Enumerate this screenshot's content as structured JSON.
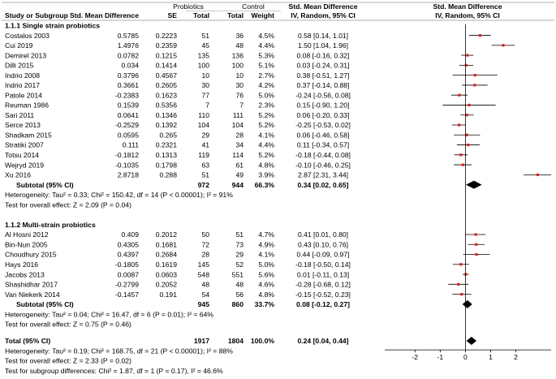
{
  "chart_data": {
    "type": "forest",
    "title": "",
    "headers": {
      "probiotics": "Probiotics",
      "control": "Control",
      "study": "Study or Subgroup",
      "smd": "Std. Mean Difference",
      "se": "SE",
      "total1": "Total",
      "total2": "Total",
      "weight": "Weight",
      "effect_title": "Std. Mean Difference",
      "effect_sub": "IV, Random, 95% CI",
      "plot_title": "Std. Mean Difference",
      "plot_sub": "IV, Random, 95% CI"
    },
    "x_axis": {
      "range": [
        -3.2,
        3.4
      ],
      "ticks": [
        -2,
        -1,
        0,
        1,
        2
      ],
      "tick_labels": [
        "-2",
        "-1",
        "0",
        "1",
        "2"
      ]
    },
    "groups": [
      {
        "label": "1.1.1 Single strain probiotics",
        "studies": [
          {
            "name": "Costalos 2003",
            "smd": "0.5785",
            "se": "0.2223",
            "n1": "51",
            "n2": "36",
            "weight": "4.5%",
            "ci_text": "0.58 [0.14, 1.01]",
            "est": 0.58,
            "lo": 0.14,
            "hi": 1.01
          },
          {
            "name": "Cui 2019",
            "smd": "1.4976",
            "se": "0.2359",
            "n1": "45",
            "n2": "48",
            "weight": "4.4%",
            "ci_text": "1.50 [1.04, 1.96]",
            "est": 1.5,
            "lo": 1.04,
            "hi": 1.96
          },
          {
            "name": "Demirel 2013",
            "smd": "0.0782",
            "se": "0.1215",
            "n1": "135",
            "n2": "136",
            "weight": "5.3%",
            "ci_text": "0.08 [-0.16, 0.32]",
            "est": 0.08,
            "lo": -0.16,
            "hi": 0.32
          },
          {
            "name": "Dilli 2015",
            "smd": "0.034",
            "se": "0.1414",
            "n1": "100",
            "n2": "100",
            "weight": "5.1%",
            "ci_text": "0.03 [-0.24, 0.31]",
            "est": 0.03,
            "lo": -0.24,
            "hi": 0.31
          },
          {
            "name": "Indrio 2008",
            "smd": "0.3796",
            "se": "0.4567",
            "n1": "10",
            "n2": "10",
            "weight": "2.7%",
            "ci_text": "0.38 [-0.51, 1.27]",
            "est": 0.38,
            "lo": -0.51,
            "hi": 1.27
          },
          {
            "name": "Indrio 2017",
            "smd": "0.3661",
            "se": "0.2605",
            "n1": "30",
            "n2": "30",
            "weight": "4.2%",
            "ci_text": "0.37 [-0.14, 0.88]",
            "est": 0.37,
            "lo": -0.14,
            "hi": 0.88
          },
          {
            "name": "Patole 2014",
            "smd": "-0.2383",
            "se": "0.1623",
            "n1": "77",
            "n2": "76",
            "weight": "5.0%",
            "ci_text": "-0.24 [-0.56, 0.08]",
            "est": -0.24,
            "lo": -0.56,
            "hi": 0.08
          },
          {
            "name": "Reuman 1986",
            "smd": "0.1539",
            "se": "0.5356",
            "n1": "7",
            "n2": "7",
            "weight": "2.3%",
            "ci_text": "0.15 [-0.90, 1.20]",
            "est": 0.15,
            "lo": -0.9,
            "hi": 1.2
          },
          {
            "name": "Sari 2011",
            "smd": "0.0641",
            "se": "0.1346",
            "n1": "110",
            "n2": "111",
            "weight": "5.2%",
            "ci_text": "0.06 [-0.20, 0.33]",
            "est": 0.06,
            "lo": -0.2,
            "hi": 0.33
          },
          {
            "name": "Serce 2013",
            "smd": "-0.2529",
            "se": "0.1392",
            "n1": "104",
            "n2": "104",
            "weight": "5.2%",
            "ci_text": "-0.25 [-0.53, 0.02]",
            "est": -0.25,
            "lo": -0.53,
            "hi": 0.02
          },
          {
            "name": "Shadkam 2015",
            "smd": "0.0595",
            "se": "0.265",
            "n1": "29",
            "n2": "28",
            "weight": "4.1%",
            "ci_text": "0.06 [-0.46, 0.58]",
            "est": 0.06,
            "lo": -0.46,
            "hi": 0.58
          },
          {
            "name": "Stratiki 2007",
            "smd": "0.111",
            "se": "0.2321",
            "n1": "41",
            "n2": "34",
            "weight": "4.4%",
            "ci_text": "0.11 [-0.34, 0.57]",
            "est": 0.11,
            "lo": -0.34,
            "hi": 0.57
          },
          {
            "name": "Totsu 2014",
            "smd": "-0.1812",
            "se": "0.1313",
            "n1": "119",
            "n2": "114",
            "weight": "5.2%",
            "ci_text": "-0.18 [-0.44, 0.08]",
            "est": -0.18,
            "lo": -0.44,
            "hi": 0.08
          },
          {
            "name": "Wejryd 2019",
            "smd": "-0.1035",
            "se": "0.1798",
            "n1": "63",
            "n2": "61",
            "weight": "4.8%",
            "ci_text": "-0.10 [-0.46, 0.25]",
            "est": -0.1,
            "lo": -0.46,
            "hi": 0.25
          },
          {
            "name": "Xu 2016",
            "smd": "2.8718",
            "se": "0.288",
            "n1": "51",
            "n2": "49",
            "weight": "3.9%",
            "ci_text": "2.87 [2.31, 3.44]",
            "est": 2.87,
            "lo": 2.31,
            "hi": 3.44
          }
        ],
        "subtotal": {
          "label": "Subtotal (95% CI)",
          "n1": "972",
          "n2": "944",
          "weight": "66.3%",
          "ci_text": "0.34 [0.02, 0.65]",
          "est": 0.34,
          "lo": 0.02,
          "hi": 0.65
        },
        "heterogeneity": "Heterogeneity: Tau² = 0.33; Chi² = 150.42, df = 14 (P < 0.00001); I² = 91%",
        "overall_test": "Test for overall effect: Z = 2.09 (P = 0.04)"
      },
      {
        "label": "1.1.2 Multi-strain probiotics",
        "studies": [
          {
            "name": "Al Hosni 2012",
            "smd": "0.409",
            "se": "0.2012",
            "n1": "50",
            "n2": "51",
            "weight": "4.7%",
            "ci_text": "0.41 [0.01, 0.80]",
            "est": 0.41,
            "lo": 0.01,
            "hi": 0.8
          },
          {
            "name": "Bin-Nun 2005",
            "smd": "0.4305",
            "se": "0.1681",
            "n1": "72",
            "n2": "73",
            "weight": "4.9%",
            "ci_text": "0.43 [0.10, 0.76]",
            "est": 0.43,
            "lo": 0.1,
            "hi": 0.76
          },
          {
            "name": "Choudhury 2015",
            "smd": "0.4397",
            "se": "0.2684",
            "n1": "28",
            "n2": "29",
            "weight": "4.1%",
            "ci_text": "0.44 [-0.09, 0.97]",
            "est": 0.44,
            "lo": -0.09,
            "hi": 0.97
          },
          {
            "name": "Hays 2016",
            "smd": "-0.1805",
            "se": "0.1619",
            "n1": "145",
            "n2": "52",
            "weight": "5.0%",
            "ci_text": "-0.18 [-0.50, 0.14]",
            "est": -0.18,
            "lo": -0.5,
            "hi": 0.14
          },
          {
            "name": "Jacobs 2013",
            "smd": "0.0087",
            "se": "0.0603",
            "n1": "548",
            "n2": "551",
            "weight": "5.6%",
            "ci_text": "0.01 [-0.11, 0.13]",
            "est": 0.01,
            "lo": -0.11,
            "hi": 0.13
          },
          {
            "name": "Shashidhar 2017",
            "smd": "-0.2799",
            "se": "0.2052",
            "n1": "48",
            "n2": "48",
            "weight": "4.6%",
            "ci_text": "-0.28 [-0.68, 0.12]",
            "est": -0.28,
            "lo": -0.68,
            "hi": 0.12
          },
          {
            "name": "Van Niekerk 2014",
            "smd": "-0.1457",
            "se": "0.191",
            "n1": "54",
            "n2": "56",
            "weight": "4.8%",
            "ci_text": "-0.15 [-0.52, 0.23]",
            "est": -0.15,
            "lo": -0.52,
            "hi": 0.23
          }
        ],
        "subtotal": {
          "label": "Subtotal (95% CI)",
          "n1": "945",
          "n2": "860",
          "weight": "33.7%",
          "ci_text": "0.08 [-0.12, 0.27]",
          "est": 0.08,
          "lo": -0.12,
          "hi": 0.27
        },
        "heterogeneity": "Heterogeneity: Tau² = 0.04; Chi² = 16.47, df = 6 (P = 0.01); I² = 64%",
        "overall_test": "Test for overall effect: Z = 0.75 (P = 0.46)"
      }
    ],
    "total": {
      "label": "Total (95% CI)",
      "n1": "1917",
      "n2": "1804",
      "weight": "100.0%",
      "ci_text": "0.24 [0.04, 0.44]",
      "est": 0.24,
      "lo": 0.04,
      "hi": 0.44
    },
    "footer": [
      "Heterogeneity: Tau² = 0.19; Chi² = 168.75, df = 21 (P < 0.00001); I² = 88%",
      "Test for overall effect: Z = 2.33 (P = 0.02)",
      "Test for subgroup differences: Chi² = 1.87, df = 1 (P = 0.17), I² = 46.6%"
    ],
    "colors": {
      "marker": "#e02020",
      "text": "#000000",
      "line": "#000000",
      "rule": "#999999"
    }
  }
}
